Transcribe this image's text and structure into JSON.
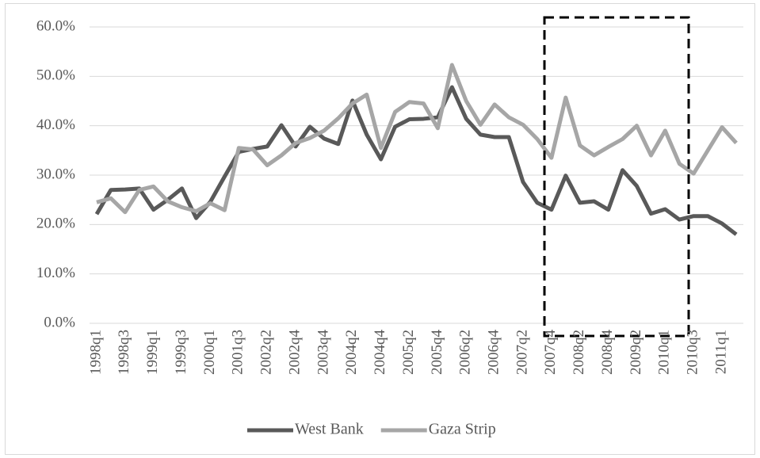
{
  "chart_data": {
    "type": "line",
    "categories": [
      "1998q1",
      null,
      "1998q3",
      null,
      "1999q1",
      null,
      "1999q3",
      null,
      "2000q1",
      null,
      "2001q3",
      null,
      "2002q2",
      null,
      "2002q4",
      null,
      "2003q4",
      null,
      "2004q2",
      null,
      "2004q4",
      null,
      "2005q2",
      null,
      "2005q4",
      null,
      "2006q2",
      null,
      "2006q4",
      null,
      "2007q2",
      null,
      "2007q4",
      null,
      "2008q2",
      null,
      "2008q4",
      null,
      "2009q2",
      null,
      "2010q1",
      null,
      "2010q3",
      null,
      "2011q1",
      null
    ],
    "series": [
      {
        "name": "West Bank",
        "color": "#595959",
        "values": [
          22.1,
          27.0,
          27.1,
          27.3,
          23.0,
          25.0,
          27.3,
          21.3,
          24.6,
          29.7,
          34.7,
          35.3,
          35.8,
          40.1,
          35.8,
          39.8,
          37.4,
          36.3,
          45.1,
          38.2,
          33.2,
          39.8,
          41.3,
          41.4,
          41.7,
          47.8,
          41.4,
          38.2,
          37.7,
          37.7,
          28.6,
          24.4,
          23.0,
          29.9,
          24.4,
          24.7,
          23.0,
          31.0,
          27.8,
          22.2,
          23.1,
          21.0,
          21.7,
          21.7,
          20.2,
          18.0
        ]
      },
      {
        "name": "Gaza Strip",
        "color": "#a6a6a6",
        "values": [
          24.5,
          25.3,
          22.5,
          27.0,
          27.7,
          24.7,
          23.5,
          22.7,
          24.3,
          22.9,
          35.5,
          35.2,
          32.0,
          34.0,
          36.5,
          37.5,
          39.0,
          41.5,
          44.5,
          46.3,
          35.5,
          42.8,
          44.8,
          44.5,
          39.5,
          52.3,
          45.0,
          40.2,
          44.3,
          41.7,
          40.2,
          37.3,
          33.5,
          45.7,
          36.0,
          34.0,
          35.7,
          37.3,
          40.0,
          34.0,
          39.0,
          32.3,
          30.3,
          35.0,
          39.7,
          36.5
        ]
      }
    ],
    "ylim": [
      0,
      60
    ],
    "yticks": [
      {
        "value": 0,
        "label": "0.0%"
      },
      {
        "value": 10,
        "label": "10.0%"
      },
      {
        "value": 20,
        "label": "20.0%"
      },
      {
        "value": 30,
        "label": "30.0%"
      },
      {
        "value": 40,
        "label": "40.0%"
      },
      {
        "value": 50,
        "label": "50.0%"
      },
      {
        "value": 60,
        "label": "60.0%"
      }
    ],
    "grid": true
  }
}
